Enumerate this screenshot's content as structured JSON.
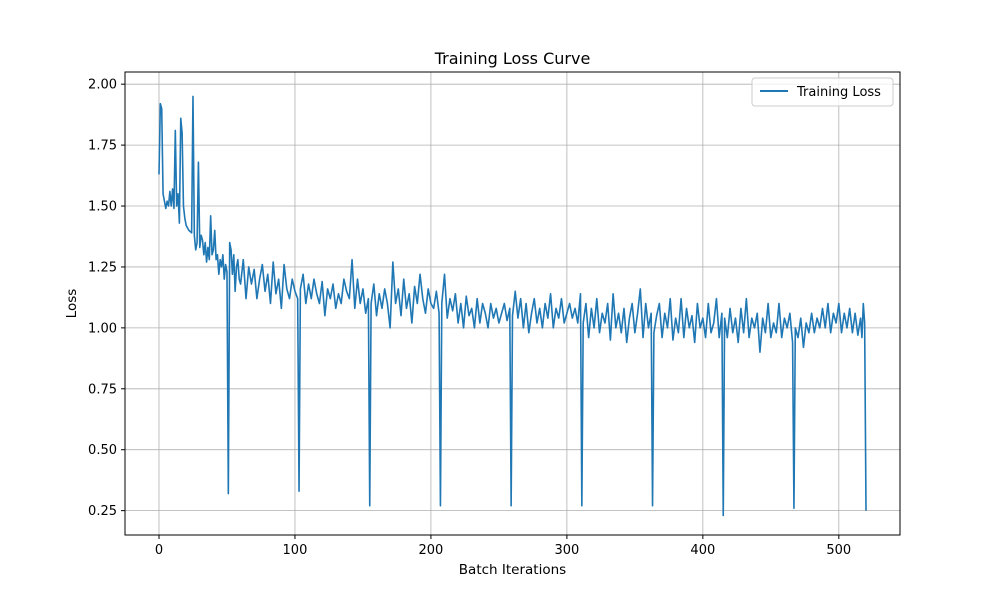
{
  "chart_data": {
    "type": "line",
    "title": "Training Loss Curve",
    "xlabel": "Batch Iterations",
    "ylabel": "Loss",
    "xlim": [
      -25,
      545
    ],
    "ylim": [
      0.15,
      2.05
    ],
    "xticks": [
      0,
      100,
      200,
      300,
      400,
      500
    ],
    "yticks": [
      0.25,
      0.5,
      0.75,
      1.0,
      1.25,
      1.5,
      1.75,
      2.0
    ],
    "ytick_labels": [
      "0.25",
      "0.50",
      "0.75",
      "1.00",
      "1.25",
      "1.50",
      "1.75",
      "2.00"
    ],
    "grid": true,
    "legend": {
      "position": "top-right",
      "entries": [
        "Training Loss"
      ]
    },
    "series": [
      {
        "name": "Training Loss",
        "color": "#1f77b4",
        "control_points": [
          [
            0,
            1.63
          ],
          [
            1,
            1.92
          ],
          [
            2,
            1.9
          ],
          [
            3,
            1.55
          ],
          [
            4,
            1.52
          ],
          [
            5,
            1.49
          ],
          [
            6,
            1.52
          ],
          [
            7,
            1.5
          ],
          [
            8,
            1.56
          ],
          [
            9,
            1.5
          ],
          [
            10,
            1.57
          ],
          [
            11,
            1.49
          ],
          [
            12,
            1.81
          ],
          [
            13,
            1.5
          ],
          [
            14,
            1.55
          ],
          [
            15,
            1.43
          ],
          [
            16,
            1.86
          ],
          [
            17,
            1.8
          ],
          [
            18,
            1.5
          ],
          [
            19,
            1.45
          ],
          [
            20,
            1.42
          ],
          [
            22,
            1.4
          ],
          [
            24,
            1.39
          ],
          [
            25,
            1.95
          ],
          [
            26,
            1.38
          ],
          [
            27,
            1.32
          ],
          [
            28,
            1.35
          ],
          [
            29,
            1.68
          ],
          [
            30,
            1.33
          ],
          [
            31,
            1.38
          ],
          [
            32,
            1.36
          ],
          [
            33,
            1.3
          ],
          [
            34,
            1.35
          ],
          [
            35,
            1.27
          ],
          [
            36,
            1.33
          ],
          [
            37,
            1.28
          ],
          [
            38,
            1.46
          ],
          [
            39,
            1.3
          ],
          [
            40,
            1.32
          ],
          [
            41,
            1.4
          ],
          [
            42,
            1.28
          ],
          [
            43,
            1.3
          ],
          [
            44,
            1.22
          ],
          [
            45,
            1.28
          ],
          [
            46,
            1.25
          ],
          [
            47,
            1.3
          ],
          [
            48,
            1.2
          ],
          [
            49,
            1.26
          ],
          [
            50,
            1.23
          ],
          [
            51,
            0.32
          ],
          [
            52,
            1.35
          ],
          [
            53,
            1.32
          ],
          [
            54,
            1.22
          ],
          [
            55,
            1.3
          ],
          [
            56,
            1.15
          ],
          [
            57,
            1.25
          ],
          [
            58,
            1.28
          ],
          [
            59,
            1.2
          ],
          [
            60,
            1.18
          ],
          [
            62,
            1.28
          ],
          [
            64,
            1.12
          ],
          [
            66,
            1.25
          ],
          [
            68,
            1.18
          ],
          [
            70,
            1.24
          ],
          [
            72,
            1.12
          ],
          [
            74,
            1.2
          ],
          [
            76,
            1.26
          ],
          [
            78,
            1.15
          ],
          [
            80,
            1.22
          ],
          [
            82,
            1.1
          ],
          [
            84,
            1.27
          ],
          [
            86,
            1.14
          ],
          [
            88,
            1.2
          ],
          [
            90,
            1.08
          ],
          [
            92,
            1.26
          ],
          [
            94,
            1.16
          ],
          [
            96,
            1.12
          ],
          [
            98,
            1.2
          ],
          [
            100,
            1.15
          ],
          [
            102,
            1.12
          ],
          [
            103,
            0.33
          ],
          [
            104,
            1.16
          ],
          [
            106,
            1.22
          ],
          [
            108,
            1.1
          ],
          [
            110,
            1.18
          ],
          [
            112,
            1.12
          ],
          [
            114,
            1.2
          ],
          [
            116,
            1.14
          ],
          [
            118,
            1.1
          ],
          [
            120,
            1.19
          ],
          [
            122,
            1.05
          ],
          [
            124,
            1.16
          ],
          [
            126,
            1.12
          ],
          [
            128,
            1.18
          ],
          [
            130,
            1.08
          ],
          [
            132,
            1.14
          ],
          [
            134,
            1.1
          ],
          [
            136,
            1.2
          ],
          [
            138,
            1.15
          ],
          [
            140,
            1.12
          ],
          [
            142,
            1.28
          ],
          [
            144,
            1.08
          ],
          [
            146,
            1.2
          ],
          [
            148,
            1.1
          ],
          [
            150,
            1.16
          ],
          [
            152,
            1.06
          ],
          [
            154,
            1.12
          ],
          [
            155,
            0.27
          ],
          [
            156,
            1.1
          ],
          [
            158,
            1.18
          ],
          [
            160,
            1.05
          ],
          [
            162,
            1.14
          ],
          [
            164,
            1.08
          ],
          [
            166,
            1.16
          ],
          [
            168,
            1.1
          ],
          [
            170,
            1.0
          ],
          [
            172,
            1.27
          ],
          [
            174,
            1.1
          ],
          [
            176,
            1.16
          ],
          [
            178,
            1.05
          ],
          [
            180,
            1.2
          ],
          [
            182,
            1.08
          ],
          [
            184,
            1.14
          ],
          [
            186,
            1.02
          ],
          [
            188,
            1.17
          ],
          [
            190,
            1.1
          ],
          [
            192,
            1.22
          ],
          [
            194,
            1.12
          ],
          [
            196,
            1.06
          ],
          [
            198,
            1.16
          ],
          [
            200,
            1.1
          ],
          [
            202,
            1.08
          ],
          [
            204,
            1.15
          ],
          [
            206,
            1.06
          ],
          [
            207,
            0.27
          ],
          [
            208,
            1.1
          ],
          [
            210,
            1.22
          ],
          [
            212,
            1.04
          ],
          [
            214,
            1.12
          ],
          [
            216,
            1.07
          ],
          [
            218,
            1.14
          ],
          [
            220,
            1.02
          ],
          [
            222,
            1.1
          ],
          [
            224,
            1.0
          ],
          [
            226,
            1.13
          ],
          [
            228,
            1.05
          ],
          [
            230,
            1.08
          ],
          [
            232,
            1.0
          ],
          [
            234,
            1.12
          ],
          [
            236,
            1.02
          ],
          [
            238,
            1.1
          ],
          [
            240,
            1.06
          ],
          [
            242,
            1.0
          ],
          [
            244,
            1.1
          ],
          [
            246,
            1.04
          ],
          [
            248,
            1.08
          ],
          [
            250,
            1.02
          ],
          [
            252,
            1.06
          ],
          [
            254,
            1.1
          ],
          [
            256,
            1.03
          ],
          [
            258,
            1.08
          ],
          [
            259,
            0.27
          ],
          [
            260,
            1.05
          ],
          [
            262,
            1.15
          ],
          [
            264,
            1.04
          ],
          [
            266,
            1.12
          ],
          [
            268,
            1.0
          ],
          [
            270,
            1.1
          ],
          [
            272,
            0.98
          ],
          [
            274,
            1.06
          ],
          [
            276,
            1.12
          ],
          [
            278,
            1.02
          ],
          [
            280,
            1.08
          ],
          [
            282,
            1.0
          ],
          [
            284,
            1.1
          ],
          [
            286,
            1.04
          ],
          [
            288,
            1.14
          ],
          [
            290,
            1.0
          ],
          [
            292,
            1.08
          ],
          [
            294,
            1.04
          ],
          [
            296,
            1.12
          ],
          [
            298,
            1.02
          ],
          [
            300,
            1.06
          ],
          [
            302,
            1.1
          ],
          [
            304,
            1.04
          ],
          [
            306,
            1.08
          ],
          [
            308,
            1.02
          ],
          [
            310,
            1.14
          ],
          [
            311,
            0.27
          ],
          [
            312,
            1.02
          ],
          [
            314,
            1.1
          ],
          [
            316,
            0.96
          ],
          [
            318,
            1.08
          ],
          [
            320,
            1.0
          ],
          [
            322,
            1.12
          ],
          [
            324,
            0.98
          ],
          [
            326,
            1.06
          ],
          [
            328,
            1.02
          ],
          [
            330,
            1.1
          ],
          [
            332,
            0.95
          ],
          [
            334,
            1.14
          ],
          [
            336,
            1.0
          ],
          [
            338,
            1.06
          ],
          [
            340,
            0.98
          ],
          [
            342,
            1.08
          ],
          [
            344,
            0.94
          ],
          [
            346,
            1.04
          ],
          [
            348,
            1.1
          ],
          [
            350,
            0.98
          ],
          [
            352,
            1.06
          ],
          [
            354,
            1.16
          ],
          [
            356,
            0.96
          ],
          [
            358,
            1.1
          ],
          [
            360,
            1.0
          ],
          [
            362,
            1.06
          ],
          [
            363,
            0.27
          ],
          [
            364,
            0.98
          ],
          [
            366,
            1.05
          ],
          [
            368,
            1.1
          ],
          [
            370,
            0.96
          ],
          [
            372,
            1.06
          ],
          [
            374,
            1.0
          ],
          [
            376,
            1.12
          ],
          [
            378,
            0.95
          ],
          [
            380,
            1.04
          ],
          [
            382,
            0.98
          ],
          [
            384,
            1.12
          ],
          [
            386,
            0.96
          ],
          [
            388,
            1.08
          ],
          [
            390,
            1.0
          ],
          [
            392,
            1.05
          ],
          [
            394,
            0.94
          ],
          [
            396,
            1.1
          ],
          [
            398,
            1.0
          ],
          [
            400,
            1.04
          ],
          [
            402,
            0.96
          ],
          [
            404,
            1.1
          ],
          [
            406,
            0.98
          ],
          [
            408,
            1.02
          ],
          [
            410,
            1.12
          ],
          [
            412,
            0.96
          ],
          [
            414,
            1.06
          ],
          [
            415,
            0.23
          ],
          [
            416,
            1.04
          ],
          [
            418,
            0.96
          ],
          [
            420,
            1.08
          ],
          [
            422,
            0.98
          ],
          [
            424,
            1.04
          ],
          [
            426,
            0.94
          ],
          [
            428,
            1.08
          ],
          [
            430,
            0.98
          ],
          [
            432,
            1.12
          ],
          [
            434,
            0.96
          ],
          [
            436,
            1.04
          ],
          [
            438,
            1.0
          ],
          [
            440,
            1.06
          ],
          [
            442,
            0.9
          ],
          [
            444,
            1.04
          ],
          [
            446,
            0.98
          ],
          [
            448,
            1.1
          ],
          [
            450,
            0.96
          ],
          [
            452,
            1.02
          ],
          [
            454,
            0.98
          ],
          [
            456,
            1.1
          ],
          [
            458,
            0.96
          ],
          [
            460,
            1.04
          ],
          [
            462,
            1.0
          ],
          [
            464,
            1.06
          ],
          [
            466,
            0.94
          ],
          [
            467,
            0.26
          ],
          [
            468,
            1.0
          ],
          [
            470,
            0.96
          ],
          [
            472,
            1.04
          ],
          [
            474,
            0.92
          ],
          [
            476,
            1.02
          ],
          [
            478,
            0.98
          ],
          [
            480,
            1.06
          ],
          [
            482,
            0.98
          ],
          [
            484,
            1.04
          ],
          [
            486,
            1.0
          ],
          [
            488,
            1.08
          ],
          [
            490,
            1.0
          ],
          [
            492,
            1.1
          ],
          [
            494,
            0.98
          ],
          [
            496,
            1.06
          ],
          [
            498,
            1.02
          ],
          [
            500,
            1.1
          ],
          [
            502,
            0.98
          ],
          [
            504,
            1.06
          ],
          [
            506,
            1.0
          ],
          [
            508,
            1.08
          ],
          [
            510,
            0.98
          ],
          [
            512,
            1.06
          ],
          [
            514,
            0.97
          ],
          [
            516,
            1.04
          ],
          [
            517,
            0.96
          ],
          [
            518,
            1.1
          ],
          [
            519,
            1.02
          ],
          [
            520,
            0.25
          ]
        ]
      }
    ]
  }
}
